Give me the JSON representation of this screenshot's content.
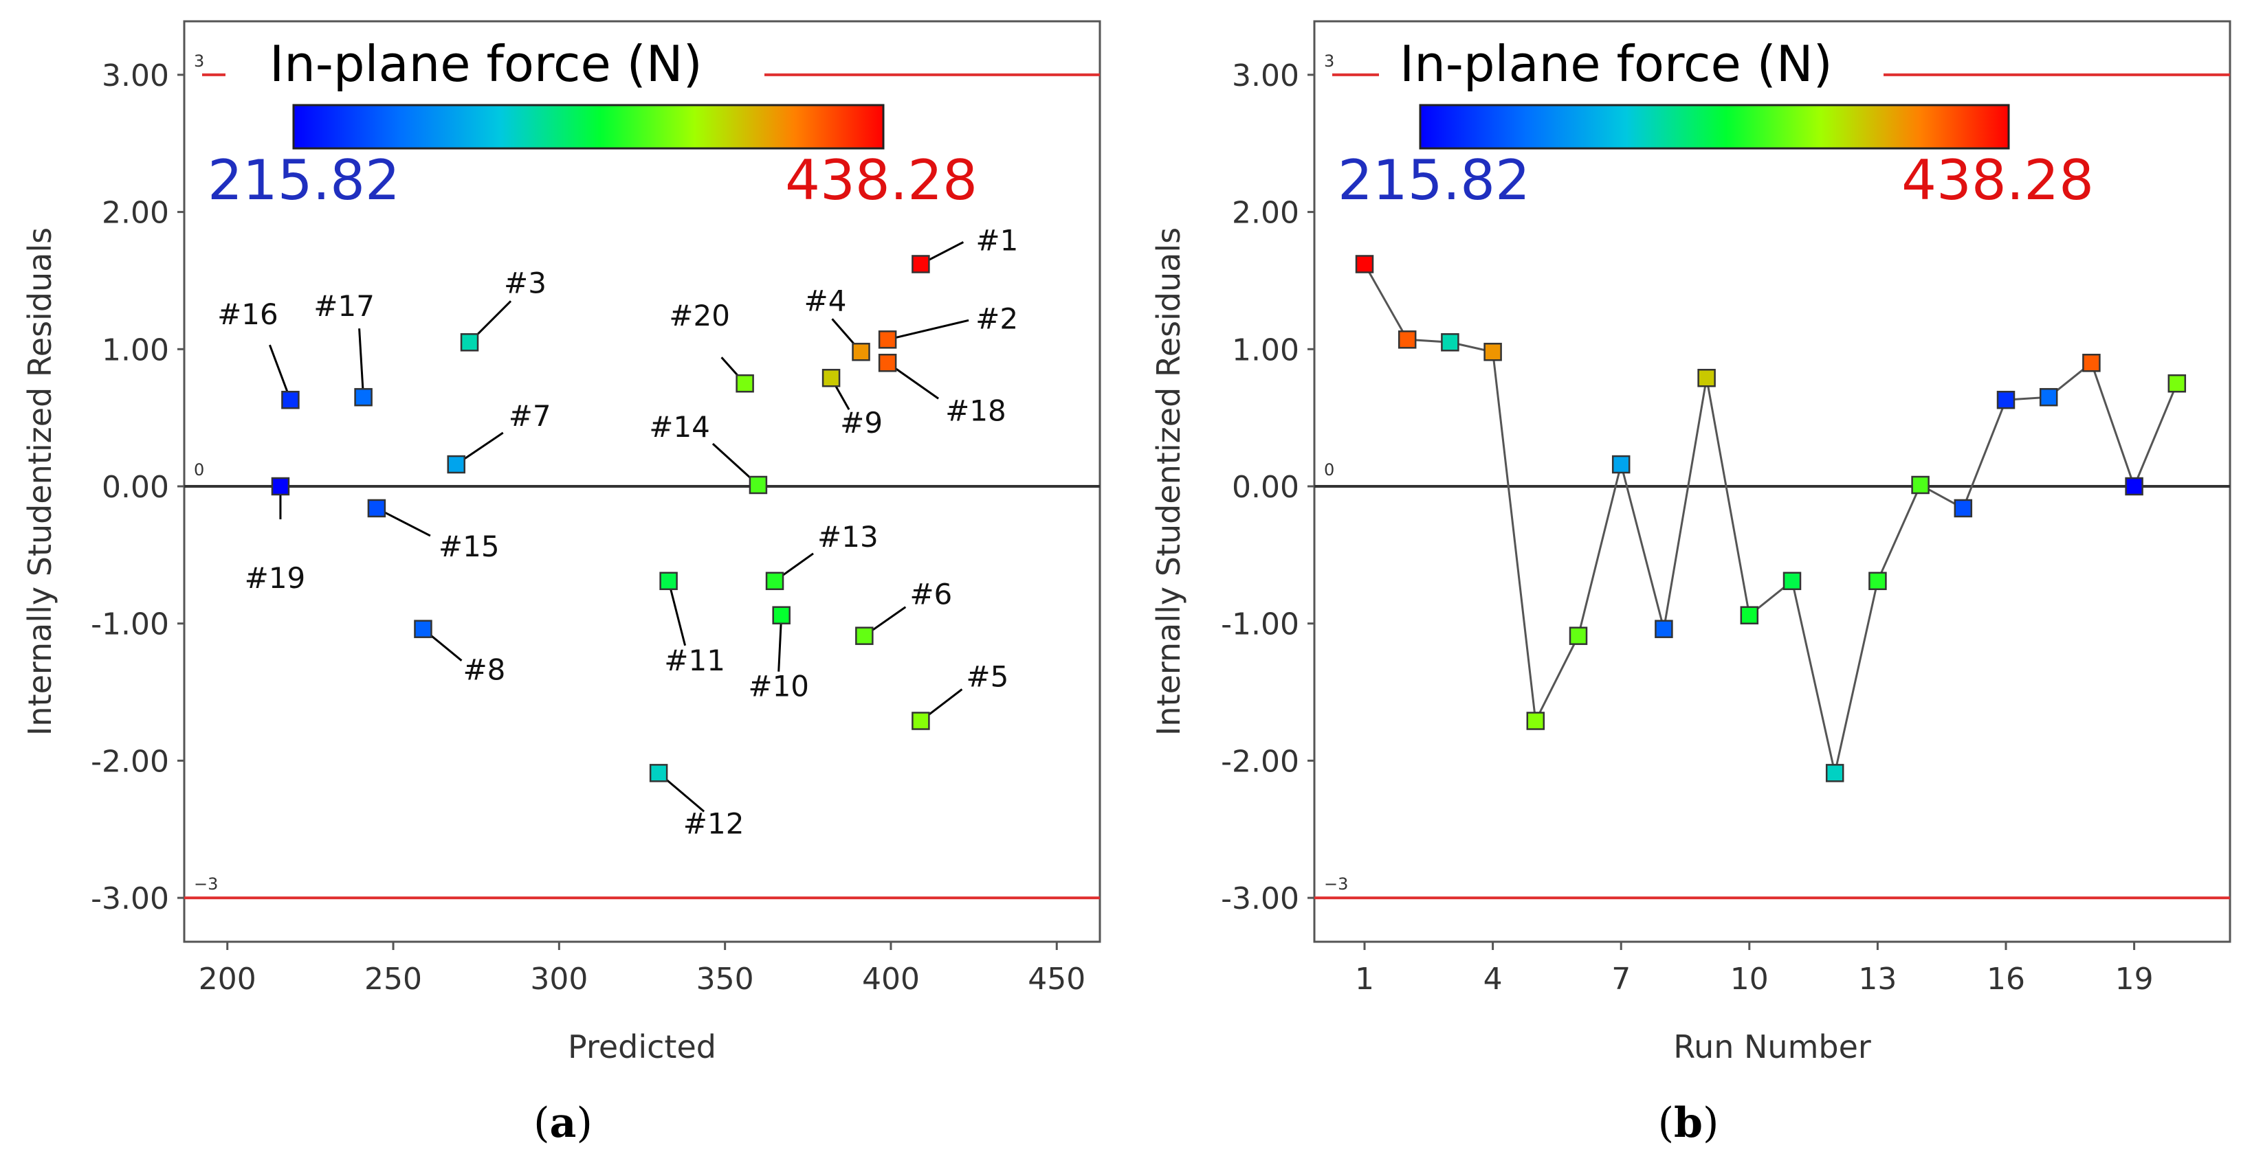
{
  "colors": {
    "ref_line": "#e03030",
    "zero_line": "#333333",
    "frame": "#555555",
    "min_text": "#1f2fbf",
    "max_text": "#e01010",
    "scale": [
      "#0000ff",
      "#0070ff",
      "#00c8e0",
      "#00ff30",
      "#a0ff00",
      "#ff8000",
      "#ff0000"
    ]
  },
  "colorbar": {
    "title": "In-plane force (N)",
    "min_label": "215.82",
    "max_label": "438.28",
    "min": 215.82,
    "max": 438.28
  },
  "ref_lines": {
    "upper_label": "3",
    "lower_label": "−3",
    "zero_label": "0",
    "upper": 3,
    "lower": -3
  },
  "chart_data": [
    {
      "type": "scatter",
      "panel": "(a)",
      "panel_letter": "a",
      "xlabel": "Predicted",
      "ylabel": "Internally Studentized Residuals",
      "xlim": [
        187,
        463
      ],
      "ylim": [
        -3.33,
        3.33
      ],
      "xticks": [
        200,
        250,
        300,
        350,
        400,
        450
      ],
      "yticks": [
        3,
        2,
        1,
        0,
        -1,
        -2,
        -3
      ],
      "ytick_labels": [
        "3.00",
        "2.00",
        "1.00",
        "0.00",
        "-1.00",
        "-2.00",
        "-3.00"
      ],
      "points": [
        {
          "label": "#1",
          "x": 409,
          "y": 1.62,
          "force": 438
        },
        {
          "label": "#2",
          "x": 399,
          "y": 1.07,
          "force": 412
        },
        {
          "label": "#3",
          "x": 273,
          "y": 1.05,
          "force": 300
        },
        {
          "label": "#4",
          "x": 391,
          "y": 0.98,
          "force": 395
        },
        {
          "label": "#5",
          "x": 409,
          "y": -1.71,
          "force": 358
        },
        {
          "label": "#6",
          "x": 392,
          "y": -1.09,
          "force": 350
        },
        {
          "label": "#7",
          "x": 269,
          "y": 0.16,
          "force": 275
        },
        {
          "label": "#8",
          "x": 259,
          "y": -1.04,
          "force": 248
        },
        {
          "label": "#9",
          "x": 382,
          "y": 0.79,
          "force": 380
        },
        {
          "label": "#10",
          "x": 367,
          "y": -0.94,
          "force": 328
        },
        {
          "label": "#11",
          "x": 333,
          "y": -0.69,
          "force": 322
        },
        {
          "label": "#12",
          "x": 330,
          "y": -2.09,
          "force": 296
        },
        {
          "label": "#13",
          "x": 365,
          "y": -0.69,
          "force": 335
        },
        {
          "label": "#14",
          "x": 360,
          "y": 0.01,
          "force": 345
        },
        {
          "label": "#15",
          "x": 245,
          "y": -0.16,
          "force": 242
        },
        {
          "label": "#16",
          "x": 219,
          "y": 0.63,
          "force": 232
        },
        {
          "label": "#17",
          "x": 241,
          "y": 0.65,
          "force": 252
        },
        {
          "label": "#18",
          "x": 399,
          "y": 0.9,
          "force": 412
        },
        {
          "label": "#19",
          "x": 216,
          "y": 0.0,
          "force": 216
        },
        {
          "label": "#20",
          "x": 356,
          "y": 0.75,
          "force": 355
        }
      ]
    },
    {
      "type": "line",
      "panel": "(b)",
      "panel_letter": "b",
      "xlabel": "Run Number",
      "ylabel": "Internally Studentized Residuals",
      "xlim": [
        0,
        21
      ],
      "ylim": [
        -3.33,
        3.33
      ],
      "xticks": [
        1,
        4,
        7,
        10,
        13,
        16,
        19
      ],
      "yticks": [
        3,
        2,
        1,
        0,
        -1,
        -2,
        -3
      ],
      "ytick_labels": [
        "3.00",
        "2.00",
        "1.00",
        "0.00",
        "-1.00",
        "-2.00",
        "-3.00"
      ],
      "points": [
        {
          "x": 1,
          "y": 1.62,
          "force": 438
        },
        {
          "x": 2,
          "y": 1.07,
          "force": 412
        },
        {
          "x": 3,
          "y": 1.05,
          "force": 300
        },
        {
          "x": 4,
          "y": 0.98,
          "force": 395
        },
        {
          "x": 5,
          "y": -1.71,
          "force": 358
        },
        {
          "x": 6,
          "y": -1.09,
          "force": 350
        },
        {
          "x": 7,
          "y": 0.16,
          "force": 275
        },
        {
          "x": 8,
          "y": -1.04,
          "force": 248
        },
        {
          "x": 9,
          "y": 0.79,
          "force": 380
        },
        {
          "x": 10,
          "y": -0.94,
          "force": 328
        },
        {
          "x": 11,
          "y": -0.69,
          "force": 322
        },
        {
          "x": 12,
          "y": -2.09,
          "force": 296
        },
        {
          "x": 13,
          "y": -0.69,
          "force": 335
        },
        {
          "x": 14,
          "y": 0.01,
          "force": 345
        },
        {
          "x": 15,
          "y": -0.16,
          "force": 242
        },
        {
          "x": 16,
          "y": 0.63,
          "force": 232
        },
        {
          "x": 17,
          "y": 0.65,
          "force": 252
        },
        {
          "x": 18,
          "y": 0.9,
          "force": 412
        },
        {
          "x": 19,
          "y": 0.0,
          "force": 216
        },
        {
          "x": 20,
          "y": 0.75,
          "force": 355
        }
      ]
    }
  ]
}
